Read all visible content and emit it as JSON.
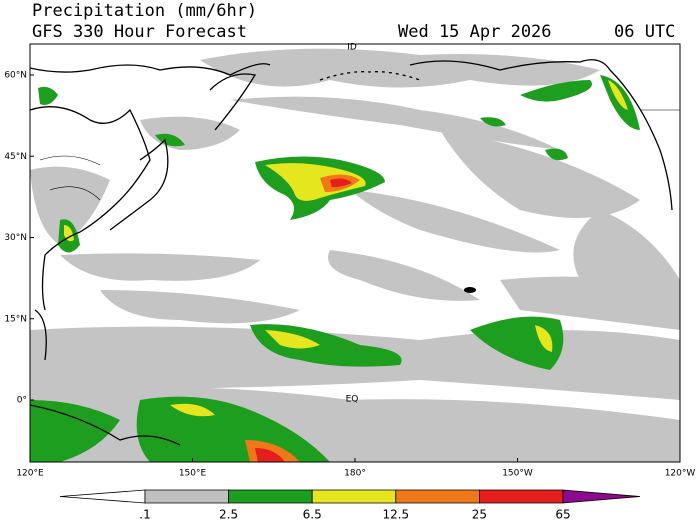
{
  "header": {
    "title": "Precipitation (mm/6hr)",
    "subtitle": "GFS 330 Hour Forecast",
    "date": "Wed 15 Apr 2026",
    "time": "06 UTC"
  },
  "map": {
    "lat_labels": [
      "60°N",
      "45°N",
      "30°N",
      "15°N",
      "0°"
    ],
    "lon_labels": [
      "120°E",
      "150°E",
      "180°",
      "150°W",
      "120°W"
    ],
    "place_labels": [
      "ID",
      "EQ"
    ]
  },
  "colorbar": {
    "labels": [
      ".1",
      "2.5",
      "6.5",
      "12.5",
      "25",
      "65"
    ],
    "colors": [
      "#ffffff",
      "#c0c0c0",
      "#1e9e1e",
      "#e6e61e",
      "#f07818",
      "#e61e1e",
      "#8c0a8c"
    ]
  }
}
